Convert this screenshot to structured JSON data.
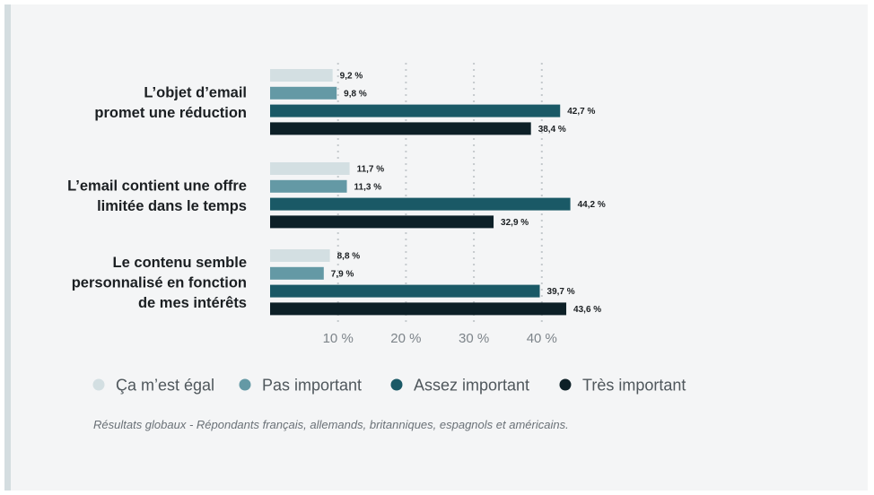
{
  "colors": {
    "ca_mest_egal": "#d3dfe2",
    "pas_important": "#6499a5",
    "assez_important": "#1a5966",
    "tres_important": "#0d2027",
    "grid": "#c5cacd"
  },
  "chart_data": {
    "type": "bar",
    "orientation": "horizontal",
    "categories": [
      [
        "L’objet d’email",
        "promet une réduction"
      ],
      [
        "L’email contient une offre",
        "limitée dans le temps"
      ],
      [
        "Le contenu semble",
        "personnalisé en fonction",
        "de mes intérêts"
      ]
    ],
    "series": [
      {
        "name": "Ça m’est égal",
        "color": "#d3dfe2",
        "values": [
          9.2,
          11.7,
          8.8
        ],
        "labels": [
          "9,2 %",
          "11,7 %",
          "8,8 %"
        ]
      },
      {
        "name": "Pas important",
        "color": "#6499a5",
        "values": [
          9.8,
          11.3,
          7.9
        ],
        "labels": [
          "9,8 %",
          "11,3 %",
          "7,9 %"
        ]
      },
      {
        "name": "Assez important",
        "color": "#1a5966",
        "values": [
          42.7,
          44.2,
          39.7
        ],
        "labels": [
          "42,7 %",
          "44,2 %",
          "39,7 %"
        ]
      },
      {
        "name": "Très important",
        "color": "#0d2027",
        "values": [
          38.4,
          32.9,
          43.6
        ],
        "labels": [
          "38,4 %",
          "32,9 %",
          "43,6 %"
        ]
      }
    ],
    "xticks": [
      10,
      20,
      30,
      40
    ],
    "xtick_labels": [
      "10 %",
      "20 %",
      "30 %",
      "40 %"
    ],
    "xlim": [
      0,
      50
    ],
    "grid": true,
    "legend_position": "bottom",
    "note": "Résultats globaux - Répondants français, allemands, britanniques, espagnols et américains."
  }
}
